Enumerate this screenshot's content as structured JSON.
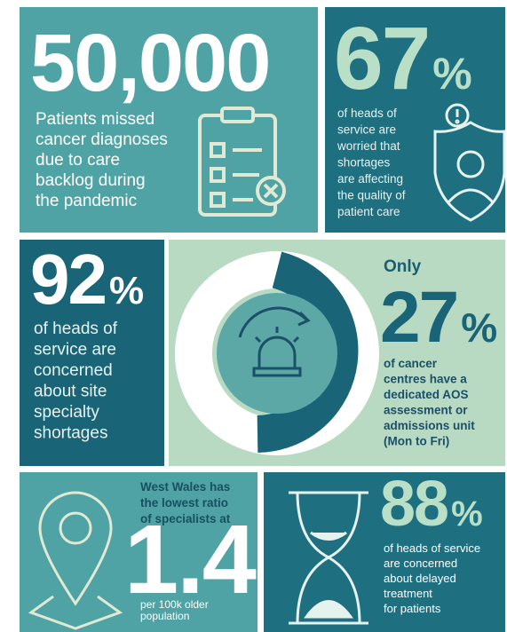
{
  "panels": [
    {
      "value": "50,000",
      "description": [
        "Patients missed",
        "cancer diagnoses",
        "due to care",
        "backlog during",
        "the pandemic"
      ]
    },
    {
      "value": "67",
      "unit": "%",
      "description": [
        "of heads of",
        "service are",
        "worried that",
        "shortages",
        "are affecting",
        "the quality of",
        "patient care"
      ]
    },
    {
      "value": "92",
      "unit": "%",
      "description": [
        "of heads of",
        "service are",
        "concerned",
        "about site",
        "specialty",
        "shortages"
      ]
    },
    {
      "prefix": "Only",
      "value": "27",
      "unit": "%",
      "description": [
        "of cancer",
        "centres have a",
        "dedicated AOS",
        "assessment or",
        "admissions unit",
        "(Mon to Fri)"
      ]
    },
    {
      "intro": [
        "West Wales has",
        "the lowest ratio",
        "of specialists at"
      ],
      "value": "1.4",
      "description": [
        "per 100k older",
        "population"
      ]
    },
    {
      "value": "88",
      "unit": "%",
      "description": [
        "of heads of service",
        "are concerned",
        "about delayed",
        "treatment",
        "for patients"
      ]
    }
  ]
}
